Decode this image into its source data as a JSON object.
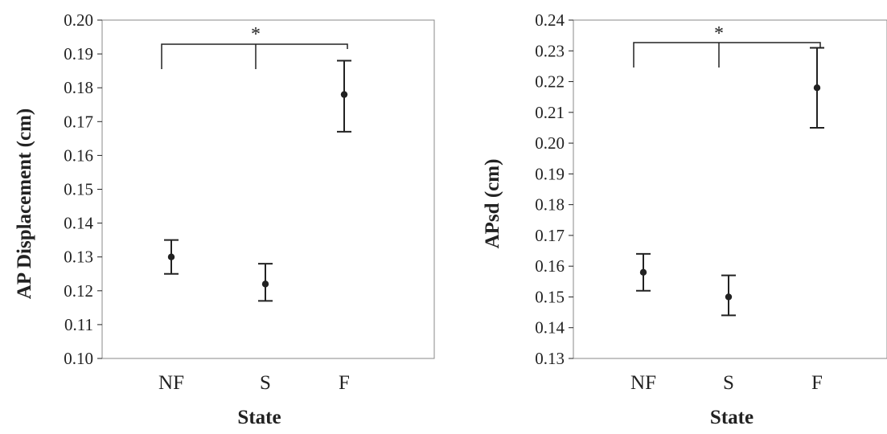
{
  "colors": {
    "ink": "#222222",
    "frame": "#888888",
    "background": "#ffffff"
  },
  "chart_data": [
    {
      "type": "scatter",
      "title": "",
      "xlabel": "State",
      "ylabel": "AP Displacement (cm)",
      "categories": [
        "NF",
        "S",
        "F"
      ],
      "values": [
        0.13,
        0.122,
        0.178
      ],
      "error_upper": [
        0.135,
        0.128,
        0.188
      ],
      "error_lower": [
        0.125,
        0.117,
        0.167
      ],
      "ylim": [
        0.1,
        0.2
      ],
      "yticks": [
        "0.10",
        "0.11",
        "0.12",
        "0.13",
        "0.14",
        "0.15",
        "0.16",
        "0.17",
        "0.18",
        "0.19",
        "0.20"
      ],
      "grid": false,
      "significance": {
        "label": "*",
        "from": "NF",
        "to": "F",
        "mid": "S"
      }
    },
    {
      "type": "scatter",
      "title": "",
      "xlabel": "State",
      "ylabel": "APsd (cm)",
      "categories": [
        "NF",
        "S",
        "F"
      ],
      "values": [
        0.158,
        0.15,
        0.218
      ],
      "error_upper": [
        0.164,
        0.157,
        0.231
      ],
      "error_lower": [
        0.152,
        0.144,
        0.205
      ],
      "ylim": [
        0.13,
        0.24
      ],
      "yticks": [
        "0.13",
        "0.14",
        "0.15",
        "0.16",
        "0.17",
        "0.18",
        "0.19",
        "0.20",
        "0.21",
        "0.22",
        "0.23",
        "0.24"
      ],
      "grid": false,
      "significance": {
        "label": "*",
        "from": "NF",
        "to": "F",
        "mid": "S"
      }
    }
  ]
}
